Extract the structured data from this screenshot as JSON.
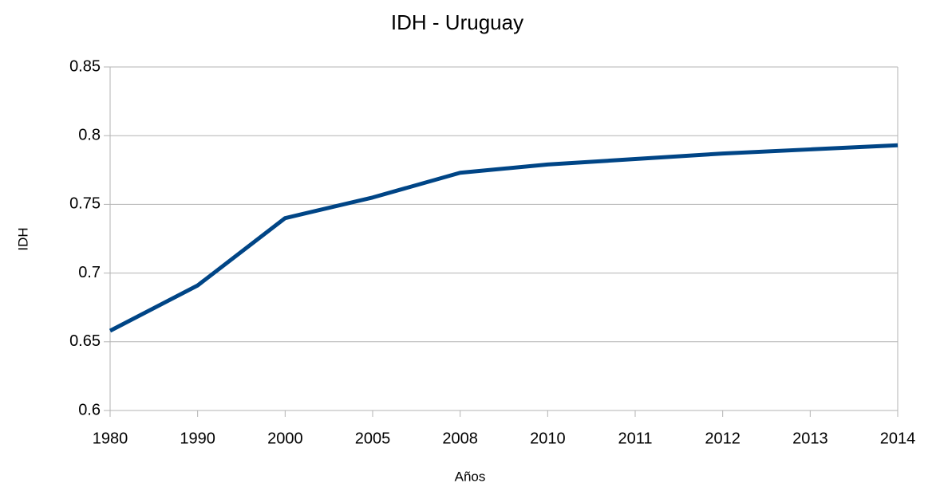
{
  "chart_data": {
    "type": "line",
    "title": "IDH - Uruguay",
    "x_label": "Años",
    "y_label": "IDH",
    "categories": [
      "1980",
      "1990",
      "2000",
      "2005",
      "2008",
      "2010",
      "2011",
      "2012",
      "2013",
      "2014"
    ],
    "series": [
      {
        "name": "IDH",
        "color": "#004586",
        "values": [
          0.658,
          0.691,
          0.74,
          0.755,
          0.773,
          0.779,
          0.783,
          0.787,
          0.79,
          0.793
        ]
      }
    ],
    "ylim": [
      0.6,
      0.85
    ],
    "yticks": [
      0.6,
      0.65,
      0.7,
      0.75,
      0.8,
      0.85
    ],
    "grid": true,
    "legend": false
  }
}
